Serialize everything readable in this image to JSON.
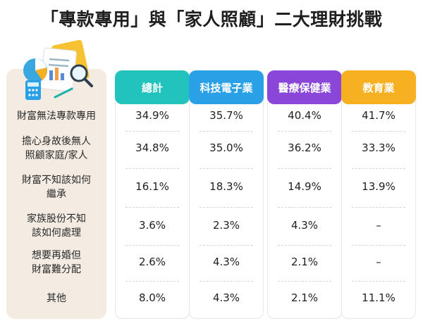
{
  "title": "「專款專用」與「家人照顧」二大理財挑戰",
  "colors": {
    "total": "#22c3bd",
    "tech": "#2aa1e6",
    "medical": "#8a46d8",
    "education": "#f6b021",
    "label_panel": "#f4ece3"
  },
  "illustration": "financial-documents-magnifier-calculator-illustration",
  "chart_data": {
    "type": "table",
    "columns": [
      "總計",
      "科技電子業",
      "醫療保健業",
      "教育業"
    ],
    "rows": [
      {
        "label": "財富無法專款專用",
        "values": [
          "34.9%",
          "35.7%",
          "40.4%",
          "41.7%"
        ]
      },
      {
        "label": "擔心身故後無人\n照顧家庭/家人",
        "values": [
          "34.8%",
          "35.0%",
          "36.2%",
          "33.3%"
        ]
      },
      {
        "label": "財富不知該如何\n繼承",
        "values": [
          "16.1%",
          "18.3%",
          "14.9%",
          "13.9%"
        ]
      },
      {
        "label": "家族股份不知\n該如何處理",
        "values": [
          "3.6%",
          "2.3%",
          "4.3%",
          "–"
        ]
      },
      {
        "label": "想要再婚但\n財富難分配",
        "values": [
          "2.6%",
          "4.3%",
          "2.1%",
          "–"
        ]
      },
      {
        "label": "其他",
        "values": [
          "8.0%",
          "4.3%",
          "2.1%",
          "11.1%"
        ]
      }
    ]
  }
}
